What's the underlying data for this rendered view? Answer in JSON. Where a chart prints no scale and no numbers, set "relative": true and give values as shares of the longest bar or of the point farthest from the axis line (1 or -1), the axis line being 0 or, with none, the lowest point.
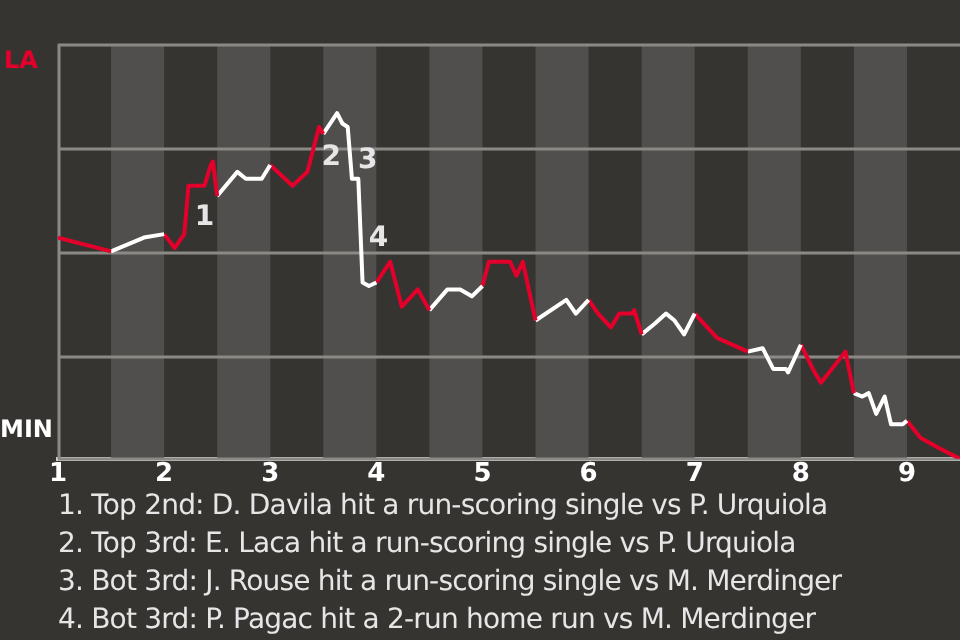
{
  "chart_data": {
    "type": "line",
    "relative": true,
    "xlim": [
      1,
      9.5
    ],
    "xticks": [
      1,
      2,
      3,
      4,
      5,
      6,
      7,
      8,
      9
    ],
    "grid": "y",
    "series": [
      {
        "color": "#e4002b",
        "x": [
          1,
          1.5
        ],
        "values": [
          0.64,
          0.6
        ]
      },
      {
        "color": "#ffffff",
        "x": [
          1.5,
          1.81,
          2
        ],
        "values": [
          0.6,
          0.64,
          0.65
        ]
      },
      {
        "color": "#e4002b",
        "x": [
          2,
          2.1,
          2.19,
          2.23,
          2.38,
          2.44,
          2.46,
          2.5
        ],
        "values": [
          0.65,
          0.61,
          0.65,
          0.79,
          0.79,
          0.85,
          0.86,
          0.76
        ]
      },
      {
        "color": "#ffffff",
        "x": [
          2.5,
          2.69,
          2.77,
          2.92,
          3
        ],
        "values": [
          0.76,
          0.83,
          0.81,
          0.81,
          0.85
        ]
      },
      {
        "color": "#e4002b",
        "x": [
          3,
          3.21,
          3.35,
          3.46,
          3.5
        ],
        "values": [
          0.85,
          0.79,
          0.83,
          0.96,
          0.94
        ]
      },
      {
        "color": "#ffffff",
        "x": [
          3.5,
          3.63,
          3.68,
          3.73,
          3.77,
          3.83,
          3.87,
          3.93,
          4
        ],
        "values": [
          0.94,
          1,
          0.97,
          0.96,
          0.81,
          0.81,
          0.51,
          0.5,
          0.51
        ]
      },
      {
        "color": "#e4002b",
        "x": [
          4,
          4.13,
          4.24,
          4.39,
          4.5
        ],
        "values": [
          0.51,
          0.57,
          0.44,
          0.49,
          0.43
        ]
      },
      {
        "color": "#ffffff",
        "x": [
          4.5,
          4.67,
          4.79,
          4.9,
          5
        ],
        "values": [
          0.43,
          0.49,
          0.49,
          0.47,
          0.5
        ]
      },
      {
        "color": "#e4002b",
        "x": [
          5,
          5.06,
          5.26,
          5.32,
          5.38,
          5.5
        ],
        "values": [
          0.5,
          0.57,
          0.57,
          0.53,
          0.57,
          0.4
        ]
      },
      {
        "color": "#ffffff",
        "x": [
          5.5,
          5.79,
          5.88,
          6
        ],
        "values": [
          0.4,
          0.46,
          0.42,
          0.46
        ]
      },
      {
        "color": "#e4002b",
        "x": [
          6,
          6.09,
          6.21,
          6.29,
          6.41,
          6.43,
          6.5
        ],
        "values": [
          0.46,
          0.42,
          0.38,
          0.42,
          0.42,
          0.43,
          0.36
        ]
      },
      {
        "color": "#ffffff",
        "x": [
          6.5,
          6.62,
          6.73,
          6.81,
          6.9,
          7
        ],
        "values": [
          0.36,
          0.39,
          0.42,
          0.4,
          0.36,
          0.42
        ]
      },
      {
        "color": "#e4002b",
        "x": [
          7,
          7.21,
          7.5
        ],
        "values": [
          0.42,
          0.35,
          0.31
        ]
      },
      {
        "color": "#ffffff",
        "x": [
          7.5,
          7.64,
          7.74,
          7.86,
          7.88,
          8
        ],
        "values": [
          0.31,
          0.32,
          0.26,
          0.26,
          0.25,
          0.33
        ]
      },
      {
        "color": "#e4002b",
        "x": [
          8,
          8.13,
          8.19,
          8.42,
          8.5
        ],
        "values": [
          0.33,
          0.25,
          0.22,
          0.31,
          0.19
        ]
      },
      {
        "color": "#ffffff",
        "x": [
          8.5,
          8.58,
          8.64,
          8.71,
          8.79,
          8.85,
          8.96,
          9
        ],
        "values": [
          0.19,
          0.18,
          0.19,
          0.13,
          0.18,
          0.1,
          0.1,
          0.11
        ]
      },
      {
        "color": "#e4002b",
        "x": [
          9,
          9.13,
          9.31,
          9.5
        ],
        "values": [
          0.11,
          0.06,
          0.03,
          0
        ]
      }
    ],
    "bands": [
      {
        "axis": "x",
        "from": 1.5,
        "to": 2,
        "color": "#504f4d"
      },
      {
        "axis": "x",
        "from": 2.5,
        "to": 3,
        "color": "#504f4d"
      },
      {
        "axis": "x",
        "from": 3.5,
        "to": 4,
        "color": "#504f4d"
      },
      {
        "axis": "x",
        "from": 4.5,
        "to": 5,
        "color": "#504f4d"
      },
      {
        "axis": "x",
        "from": 5.5,
        "to": 6,
        "color": "#504f4d"
      },
      {
        "axis": "x",
        "from": 6.5,
        "to": 7,
        "color": "#504f4d"
      },
      {
        "axis": "x",
        "from": 7.5,
        "to": 8,
        "color": "#504f4d"
      },
      {
        "axis": "x",
        "from": 8.5,
        "to": 9,
        "color": "#504f4d"
      }
    ],
    "annotations": [
      "LA",
      "MIN",
      {
        "text": "1",
        "x": 2.21,
        "y": 0.72
      },
      {
        "text": "2",
        "x": 3.405,
        "y": 0.895
      },
      {
        "text": "3",
        "x": 3.75,
        "y": 0.885
      },
      {
        "text": "4",
        "x": 3.85,
        "y": 0.66
      },
      "1. Top 2nd: D. Davila hit a run-scoring single vs P. Urquiola",
      "2. Top 3rd: E. Laca hit a run-scoring single vs P. Urquiola",
      "3. Bot 3rd: J. Rouse hit a run-scoring single vs M. Merdinger",
      "4. Bot 3rd: P. Pagac hit a 2-run home run vs M. Merdinger"
    ]
  }
}
